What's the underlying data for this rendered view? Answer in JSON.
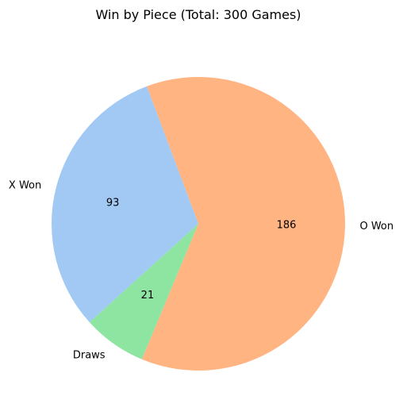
{
  "chart_data": {
    "type": "pie",
    "title": "Win by Piece (Total: 300 Games)",
    "slices": [
      {
        "label": "O Won",
        "value": 186,
        "color": "#ffb482"
      },
      {
        "label": "X Won",
        "value": 93,
        "color": "#a1c9f4"
      },
      {
        "label": "Draws",
        "value": 21,
        "color": "#8de5a1"
      }
    ]
  }
}
